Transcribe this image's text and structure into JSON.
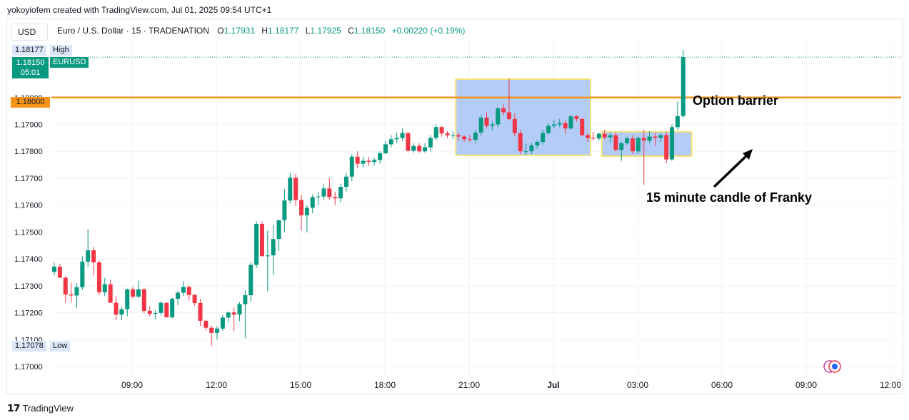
{
  "header": {
    "credit": "yokoyiofem created with TradingView.com, Jul 01, 2025 09:54 UTC+1"
  },
  "toolbar": {
    "currency": "USD"
  },
  "legend": {
    "symbol": "Euro / U.S. Dollar · 15 · TRADENATION",
    "open_label": "O",
    "open": "1.17931",
    "high_label": "H",
    "high": "1.18177",
    "low_label": "L",
    "low": "1.17925",
    "close_label": "C",
    "close": "1.18150",
    "change": "+0.00220 (+0.19%)"
  },
  "price_tags": {
    "high_value": "1.18177",
    "high_label": "High",
    "current_value": "1.18150",
    "current_timer": "05:01",
    "current_symbol": "EURUSD",
    "barrier_value": "1.18000",
    "low_value": "1.17078",
    "low_label": "Low"
  },
  "colors": {
    "up": "#089981",
    "down": "#f23645",
    "barrier": "#f7931a",
    "box_fill": "#a7c4f7",
    "box_border": "#f5e37a",
    "grid": "#f0f3fa"
  },
  "footer": {
    "brand": "TradingView"
  },
  "chart_data": {
    "type": "candlestick",
    "timeframe": "15",
    "y_ticks": [
      "1.17000",
      "1.17100",
      "1.17200",
      "1.17300",
      "1.17400",
      "1.17500",
      "1.17600",
      "1.17700",
      "1.17800",
      "1.17900",
      "1.18000"
    ],
    "ylim": [
      1.1697,
      1.1825
    ],
    "x_ticks": [
      "09:00",
      "12:00",
      "15:00",
      "18:00",
      "21:00",
      "Jul",
      "03:00",
      "06:00",
      "09:00",
      "12:00"
    ],
    "annotations": [
      {
        "text": "Option barrier",
        "type": "horizontal_line",
        "price": 1.18
      },
      {
        "text": "15 minute candle of Franky",
        "type": "arrow"
      }
    ],
    "boxes": [
      {
        "name": "range-box-overnight",
        "from_bar": 72,
        "to_bar": 95,
        "high": 1.18068,
        "low": 1.17785
      },
      {
        "name": "range-box-franky",
        "from_bar": 98,
        "to_bar": 113,
        "high": 1.17873,
        "low": 1.17782
      }
    ],
    "candles": [
      {
        "o": 1.17352,
        "h": 1.17386,
        "l": 1.17339,
        "c": 1.17371
      },
      {
        "o": 1.17371,
        "h": 1.17382,
        "l": 1.1733,
        "c": 1.1733
      },
      {
        "o": 1.1733,
        "h": 1.17336,
        "l": 1.17237,
        "c": 1.17268
      },
      {
        "o": 1.17268,
        "h": 1.17312,
        "l": 1.17238,
        "c": 1.17264
      },
      {
        "o": 1.17264,
        "h": 1.17309,
        "l": 1.17217,
        "c": 1.17295
      },
      {
        "o": 1.17295,
        "h": 1.1741,
        "l": 1.17285,
        "c": 1.1739
      },
      {
        "o": 1.1739,
        "h": 1.1751,
        "l": 1.1737,
        "c": 1.17432
      },
      {
        "o": 1.17432,
        "h": 1.17445,
        "l": 1.17338,
        "c": 1.17387
      },
      {
        "o": 1.17387,
        "h": 1.17393,
        "l": 1.17265,
        "c": 1.17276
      },
      {
        "o": 1.17276,
        "h": 1.1733,
        "l": 1.17262,
        "c": 1.17306
      },
      {
        "o": 1.17306,
        "h": 1.17323,
        "l": 1.17237,
        "c": 1.17237
      },
      {
        "o": 1.17237,
        "h": 1.17262,
        "l": 1.17173,
        "c": 1.17193
      },
      {
        "o": 1.17193,
        "h": 1.17223,
        "l": 1.17172,
        "c": 1.17213
      },
      {
        "o": 1.17213,
        "h": 1.1729,
        "l": 1.17187,
        "c": 1.17287
      },
      {
        "o": 1.17287,
        "h": 1.17295,
        "l": 1.17254,
        "c": 1.1726
      },
      {
        "o": 1.1726,
        "h": 1.17319,
        "l": 1.17255,
        "c": 1.17287
      },
      {
        "o": 1.17287,
        "h": 1.17291,
        "l": 1.17198,
        "c": 1.17207
      },
      {
        "o": 1.17207,
        "h": 1.17223,
        "l": 1.17187,
        "c": 1.17196
      },
      {
        "o": 1.17196,
        "h": 1.17209,
        "l": 1.17176,
        "c": 1.17199
      },
      {
        "o": 1.17199,
        "h": 1.17243,
        "l": 1.1719,
        "c": 1.17237
      },
      {
        "o": 1.17237,
        "h": 1.17237,
        "l": 1.17182,
        "c": 1.17183
      },
      {
        "o": 1.17183,
        "h": 1.17256,
        "l": 1.17179,
        "c": 1.17252
      },
      {
        "o": 1.17252,
        "h": 1.17282,
        "l": 1.17228,
        "c": 1.17274
      },
      {
        "o": 1.17274,
        "h": 1.17317,
        "l": 1.17262,
        "c": 1.17296
      },
      {
        "o": 1.17296,
        "h": 1.17302,
        "l": 1.17245,
        "c": 1.17266
      },
      {
        "o": 1.17266,
        "h": 1.1727,
        "l": 1.17226,
        "c": 1.17236
      },
      {
        "o": 1.17236,
        "h": 1.17251,
        "l": 1.17151,
        "c": 1.1717
      },
      {
        "o": 1.1717,
        "h": 1.17174,
        "l": 1.17134,
        "c": 1.17144
      },
      {
        "o": 1.17144,
        "h": 1.17152,
        "l": 1.17077,
        "c": 1.17125
      },
      {
        "o": 1.17125,
        "h": 1.1715,
        "l": 1.171,
        "c": 1.17141
      },
      {
        "o": 1.17141,
        "h": 1.17192,
        "l": 1.17133,
        "c": 1.17182
      },
      {
        "o": 1.17182,
        "h": 1.17205,
        "l": 1.17164,
        "c": 1.17201
      },
      {
        "o": 1.17201,
        "h": 1.17219,
        "l": 1.17131,
        "c": 1.17193
      },
      {
        "o": 1.17193,
        "h": 1.1724,
        "l": 1.17169,
        "c": 1.17232
      },
      {
        "o": 1.17232,
        "h": 1.17282,
        "l": 1.17106,
        "c": 1.17265
      },
      {
        "o": 1.17265,
        "h": 1.17388,
        "l": 1.17242,
        "c": 1.17378
      },
      {
        "o": 1.17378,
        "h": 1.1754,
        "l": 1.17365,
        "c": 1.1753
      },
      {
        "o": 1.1753,
        "h": 1.1754,
        "l": 1.1741,
        "c": 1.1741
      },
      {
        "o": 1.1741,
        "h": 1.17505,
        "l": 1.1728,
        "c": 1.17413
      },
      {
        "o": 1.17413,
        "h": 1.17526,
        "l": 1.1734,
        "c": 1.17474
      },
      {
        "o": 1.17474,
        "h": 1.17544,
        "l": 1.1743,
        "c": 1.17544
      },
      {
        "o": 1.17544,
        "h": 1.1766,
        "l": 1.175,
        "c": 1.17617
      },
      {
        "o": 1.17617,
        "h": 1.17721,
        "l": 1.17606,
        "c": 1.17702
      },
      {
        "o": 1.17702,
        "h": 1.17716,
        "l": 1.17597,
        "c": 1.17619
      },
      {
        "o": 1.17619,
        "h": 1.17638,
        "l": 1.17505,
        "c": 1.17562
      },
      {
        "o": 1.17562,
        "h": 1.176,
        "l": 1.175,
        "c": 1.1759
      },
      {
        "o": 1.1759,
        "h": 1.1764,
        "l": 1.1757,
        "c": 1.1763
      },
      {
        "o": 1.1763,
        "h": 1.1765,
        "l": 1.176,
        "c": 1.17632
      },
      {
        "o": 1.17632,
        "h": 1.1768,
        "l": 1.1762,
        "c": 1.17662
      },
      {
        "o": 1.17662,
        "h": 1.177,
        "l": 1.1762,
        "c": 1.1763
      },
      {
        "o": 1.1763,
        "h": 1.1765,
        "l": 1.176,
        "c": 1.17625
      },
      {
        "o": 1.17625,
        "h": 1.1768,
        "l": 1.1761,
        "c": 1.17668
      },
      {
        "o": 1.17668,
        "h": 1.1772,
        "l": 1.1765,
        "c": 1.17706
      },
      {
        "o": 1.17706,
        "h": 1.1779,
        "l": 1.1769,
        "c": 1.1778
      },
      {
        "o": 1.1778,
        "h": 1.178,
        "l": 1.1774,
        "c": 1.17754
      },
      {
        "o": 1.17754,
        "h": 1.1778,
        "l": 1.1774,
        "c": 1.17765
      },
      {
        "o": 1.17765,
        "h": 1.1778,
        "l": 1.17745,
        "c": 1.17761
      },
      {
        "o": 1.17761,
        "h": 1.17775,
        "l": 1.17748,
        "c": 1.17768
      },
      {
        "o": 1.17768,
        "h": 1.178,
        "l": 1.17755,
        "c": 1.17793
      },
      {
        "o": 1.17793,
        "h": 1.1784,
        "l": 1.1779,
        "c": 1.17826
      },
      {
        "o": 1.17826,
        "h": 1.1786,
        "l": 1.17815,
        "c": 1.17845
      },
      {
        "o": 1.17845,
        "h": 1.1787,
        "l": 1.1783,
        "c": 1.1785
      },
      {
        "o": 1.1785,
        "h": 1.17885,
        "l": 1.1784,
        "c": 1.17868
      },
      {
        "o": 1.17868,
        "h": 1.1787,
        "l": 1.178,
        "c": 1.17802
      },
      {
        "o": 1.17802,
        "h": 1.1783,
        "l": 1.17795,
        "c": 1.1782
      },
      {
        "o": 1.1782,
        "h": 1.1783,
        "l": 1.17795,
        "c": 1.178
      },
      {
        "o": 1.178,
        "h": 1.1783,
        "l": 1.17795,
        "c": 1.17815
      },
      {
        "o": 1.17815,
        "h": 1.1786,
        "l": 1.178,
        "c": 1.1785
      },
      {
        "o": 1.1785,
        "h": 1.179,
        "l": 1.1784,
        "c": 1.1789
      },
      {
        "o": 1.1789,
        "h": 1.17895,
        "l": 1.17855,
        "c": 1.17867
      },
      {
        "o": 1.17867,
        "h": 1.17875,
        "l": 1.1785,
        "c": 1.1786
      },
      {
        "o": 1.1786,
        "h": 1.17875,
        "l": 1.17845,
        "c": 1.1786
      },
      {
        "o": 1.1786,
        "h": 1.1787,
        "l": 1.1784,
        "c": 1.17855
      },
      {
        "o": 1.17855,
        "h": 1.1786,
        "l": 1.17835,
        "c": 1.17845
      },
      {
        "o": 1.17845,
        "h": 1.1786,
        "l": 1.17835,
        "c": 1.17843
      },
      {
        "o": 1.17843,
        "h": 1.1788,
        "l": 1.1783,
        "c": 1.1787
      },
      {
        "o": 1.1787,
        "h": 1.17935,
        "l": 1.1786,
        "c": 1.17925
      },
      {
        "o": 1.17925,
        "h": 1.17945,
        "l": 1.17885,
        "c": 1.17895
      },
      {
        "o": 1.17895,
        "h": 1.17912,
        "l": 1.1788,
        "c": 1.179
      },
      {
        "o": 1.179,
        "h": 1.17965,
        "l": 1.1789,
        "c": 1.1796
      },
      {
        "o": 1.1796,
        "h": 1.17975,
        "l": 1.17935,
        "c": 1.17945
      },
      {
        "o": 1.17945,
        "h": 1.1807,
        "l": 1.17915,
        "c": 1.1792
      },
      {
        "o": 1.1792,
        "h": 1.1794,
        "l": 1.17855,
        "c": 1.17868
      },
      {
        "o": 1.17868,
        "h": 1.1788,
        "l": 1.1779,
        "c": 1.178
      },
      {
        "o": 1.178,
        "h": 1.1783,
        "l": 1.17785,
        "c": 1.178
      },
      {
        "o": 1.178,
        "h": 1.1783,
        "l": 1.1779,
        "c": 1.17822
      },
      {
        "o": 1.17822,
        "h": 1.1784,
        "l": 1.1781,
        "c": 1.17835
      },
      {
        "o": 1.17835,
        "h": 1.1788,
        "l": 1.17825,
        "c": 1.17868
      },
      {
        "o": 1.17868,
        "h": 1.17905,
        "l": 1.1786,
        "c": 1.17895
      },
      {
        "o": 1.17895,
        "h": 1.17915,
        "l": 1.17885,
        "c": 1.179
      },
      {
        "o": 1.179,
        "h": 1.1792,
        "l": 1.1789,
        "c": 1.17905
      },
      {
        "o": 1.17905,
        "h": 1.17915,
        "l": 1.17865,
        "c": 1.17885
      },
      {
        "o": 1.17885,
        "h": 1.17935,
        "l": 1.1788,
        "c": 1.1793
      },
      {
        "o": 1.1793,
        "h": 1.17935,
        "l": 1.1791,
        "c": 1.1792
      },
      {
        "o": 1.1792,
        "h": 1.17925,
        "l": 1.17855,
        "c": 1.1786
      },
      {
        "o": 1.1786,
        "h": 1.17868,
        "l": 1.17835,
        "c": 1.1785
      },
      {
        "o": 1.1785,
        "h": 1.17872,
        "l": 1.1784,
        "c": 1.17848
      },
      {
        "o": 1.17848,
        "h": 1.1787,
        "l": 1.1784,
        "c": 1.17865
      },
      {
        "o": 1.17865,
        "h": 1.1788,
        "l": 1.17845,
        "c": 1.17852
      },
      {
        "o": 1.17852,
        "h": 1.1787,
        "l": 1.1783,
        "c": 1.1786
      },
      {
        "o": 1.1786,
        "h": 1.1787,
        "l": 1.178,
        "c": 1.17805
      },
      {
        "o": 1.17805,
        "h": 1.17835,
        "l": 1.17765,
        "c": 1.1783
      },
      {
        "o": 1.1783,
        "h": 1.17855,
        "l": 1.17825,
        "c": 1.17848
      },
      {
        "o": 1.17848,
        "h": 1.1786,
        "l": 1.1779,
        "c": 1.178
      },
      {
        "o": 1.178,
        "h": 1.17855,
        "l": 1.1779,
        "c": 1.1785
      },
      {
        "o": 1.1785,
        "h": 1.1788,
        "l": 1.17675,
        "c": 1.1784
      },
      {
        "o": 1.1784,
        "h": 1.17875,
        "l": 1.1783,
        "c": 1.17855
      },
      {
        "o": 1.17855,
        "h": 1.1787,
        "l": 1.1782,
        "c": 1.1785
      },
      {
        "o": 1.1785,
        "h": 1.1787,
        "l": 1.17835,
        "c": 1.1786
      },
      {
        "o": 1.1786,
        "h": 1.17872,
        "l": 1.17755,
        "c": 1.1777
      },
      {
        "o": 1.1777,
        "h": 1.179,
        "l": 1.17765,
        "c": 1.1789
      },
      {
        "o": 1.1789,
        "h": 1.17985,
        "l": 1.1788,
        "c": 1.17931
      },
      {
        "o": 1.17931,
        "h": 1.18177,
        "l": 1.17925,
        "c": 1.1815
      }
    ]
  }
}
